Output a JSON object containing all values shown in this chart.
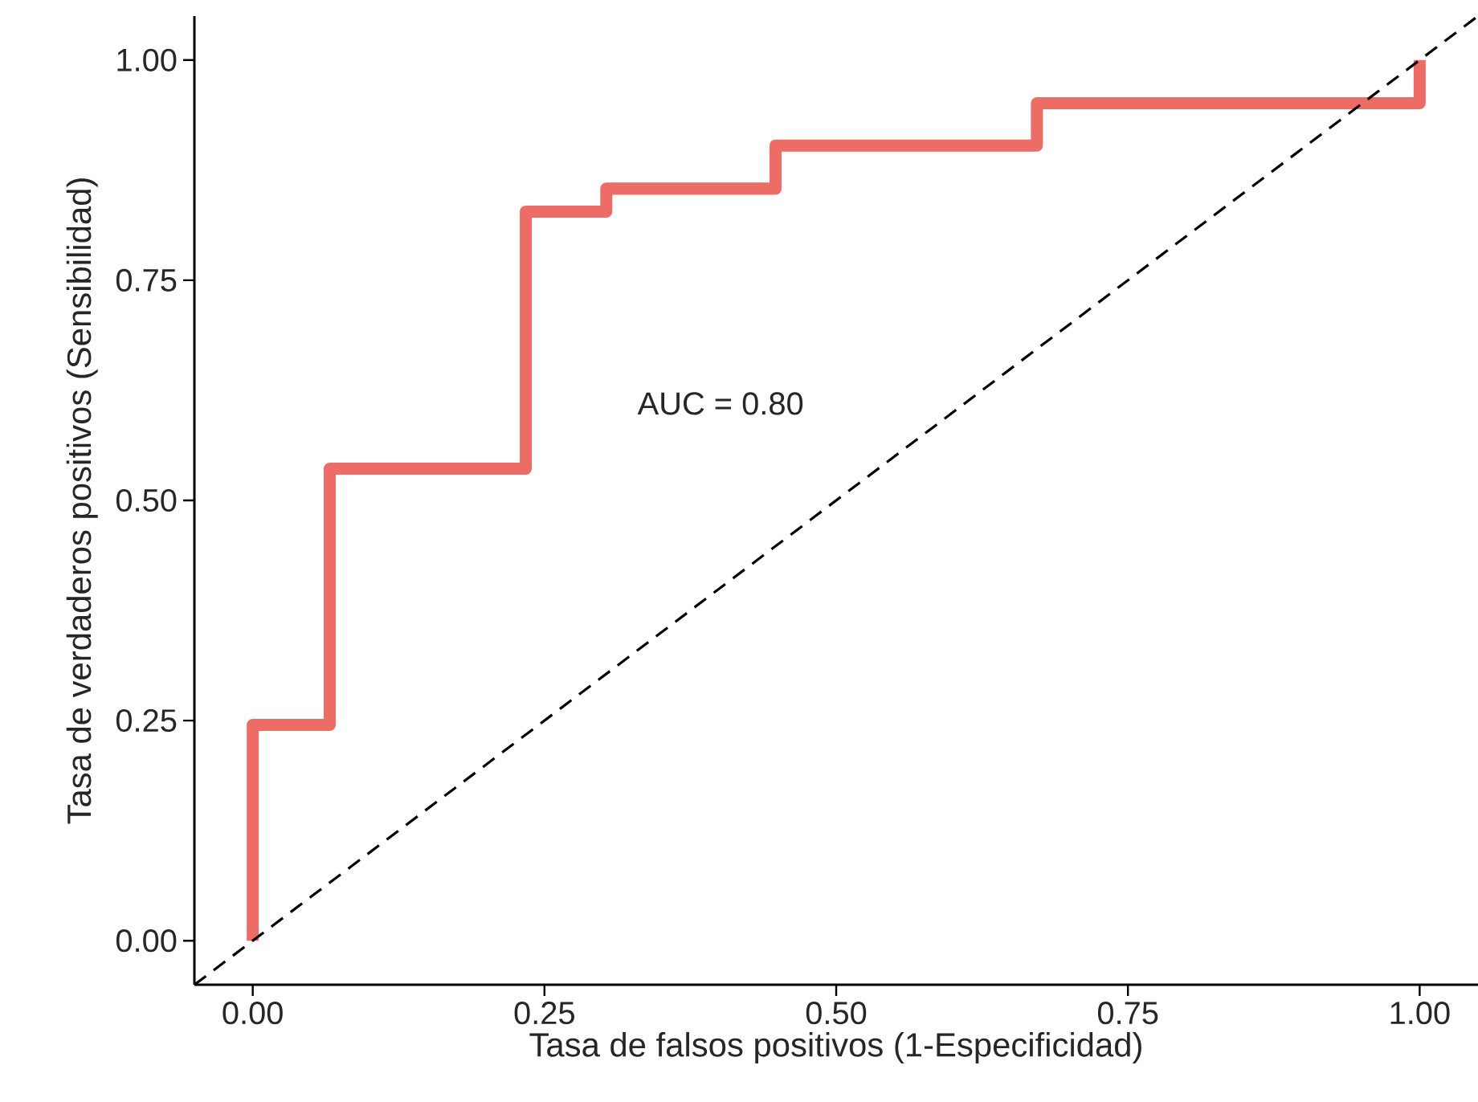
{
  "chart_data": {
    "type": "step",
    "xlabel": "Tasa de falsos positivos (1-Especificidad)",
    "ylabel": "Tasa de verdaderos positivos (Sensibilidad)",
    "series": [
      {
        "color": "#ee6c66",
        "x": [
          0,
          0,
          0.066,
          0.234,
          0.303,
          0.448,
          0.672,
          1.0
        ],
        "values": [
          0,
          0.245,
          0.536,
          0.828,
          0.854,
          0.903,
          0.951,
          1.0
        ]
      },
      {
        "type": "line",
        "color": "#000000",
        "line_style": "dashed",
        "x": [
          -0.05,
          1.05
        ],
        "values": [
          -0.05,
          1.05
        ]
      }
    ],
    "annotations": [
      "AUC = 0.80"
    ],
    "xlim": [
      -0.05,
      1.05
    ],
    "ylim": [
      -0.05,
      1.05
    ],
    "xticks": [
      {
        "value": 0,
        "label": "0.00"
      },
      {
        "value": 0.25,
        "label": "0.25"
      },
      {
        "value": 0.5,
        "label": "0.50"
      },
      {
        "value": 0.75,
        "label": "0.75"
      },
      {
        "value": 1,
        "label": "1.00"
      }
    ],
    "yticks": [
      {
        "value": 0,
        "label": "0.00"
      },
      {
        "value": 0.25,
        "label": "0.25"
      },
      {
        "value": 0.5,
        "label": "0.50"
      },
      {
        "value": 0.75,
        "label": "0.75"
      },
      {
        "value": 1,
        "label": "1.00"
      }
    ],
    "grid": false,
    "legend": false,
    "marker": "none"
  }
}
